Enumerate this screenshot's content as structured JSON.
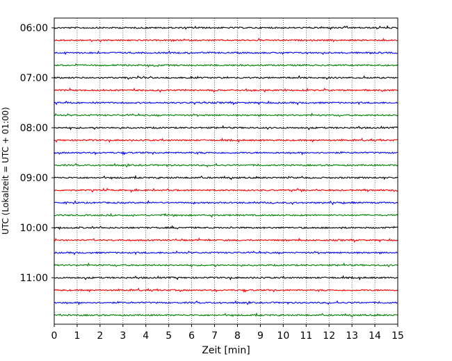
{
  "chart_data": {
    "type": "line",
    "title": "",
    "xlabel": "Zeit  [min]",
    "ylabel": "UTC (Lokalzeit = UTC + 01:00)",
    "xlim": [
      0,
      15
    ],
    "x_ticks": [
      "0",
      "1",
      "2",
      "3",
      "4",
      "5",
      "6",
      "7",
      "8",
      "9",
      "10",
      "11",
      "12",
      "13",
      "14",
      "15"
    ],
    "y_ticks": [
      "06:00",
      "07:00",
      "08:00",
      "09:00",
      "10:00",
      "11:00"
    ],
    "grid_x": "dotted vertical lines at each minute",
    "rows_per_hour": 4,
    "row_interval_minutes": 15,
    "row_colors": [
      "#000000",
      "#ff0000",
      "#0000ff",
      "#008000"
    ],
    "series": [
      {
        "start": "06:00",
        "color": "#000000"
      },
      {
        "start": "06:15",
        "color": "#ff0000"
      },
      {
        "start": "06:30",
        "color": "#0000ff"
      },
      {
        "start": "06:45",
        "color": "#008000"
      },
      {
        "start": "07:00",
        "color": "#000000"
      },
      {
        "start": "07:15",
        "color": "#ff0000"
      },
      {
        "start": "07:30",
        "color": "#0000ff"
      },
      {
        "start": "07:45",
        "color": "#008000"
      },
      {
        "start": "08:00",
        "color": "#000000"
      },
      {
        "start": "08:15",
        "color": "#ff0000"
      },
      {
        "start": "08:30",
        "color": "#0000ff"
      },
      {
        "start": "08:45",
        "color": "#008000"
      },
      {
        "start": "09:00",
        "color": "#000000"
      },
      {
        "start": "09:15",
        "color": "#ff0000"
      },
      {
        "start": "09:30",
        "color": "#0000ff"
      },
      {
        "start": "09:45",
        "color": "#008000"
      },
      {
        "start": "10:00",
        "color": "#000000"
      },
      {
        "start": "10:15",
        "color": "#ff0000"
      },
      {
        "start": "10:30",
        "color": "#0000ff"
      },
      {
        "start": "10:45",
        "color": "#008000"
      },
      {
        "start": "11:00",
        "color": "#000000"
      },
      {
        "start": "11:15",
        "color": "#ff0000"
      },
      {
        "start": "11:30",
        "color": "#0000ff"
      },
      {
        "start": "11:45",
        "color": "#008000"
      }
    ]
  }
}
